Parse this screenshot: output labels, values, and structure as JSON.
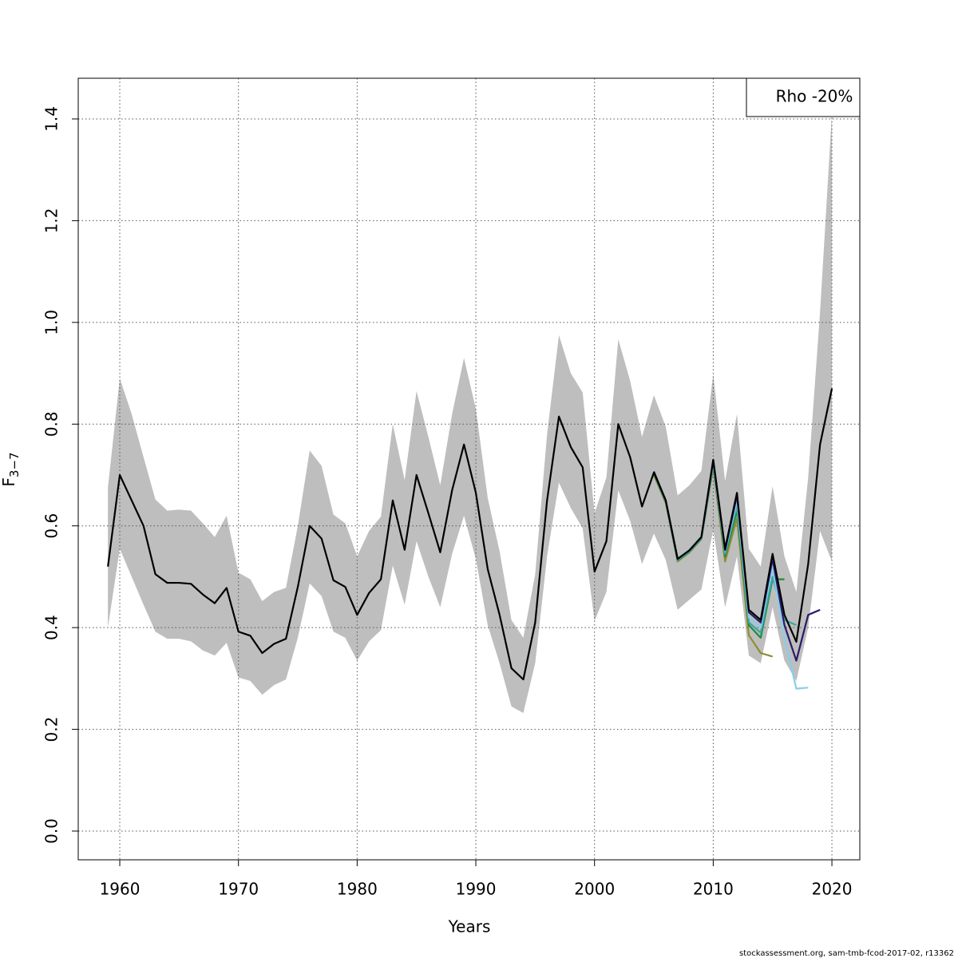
{
  "chart_data": {
    "type": "line",
    "xlabel": "Years",
    "ylabel": "F",
    "ylabel_sub": "3−7",
    "footer": "stockassessment.org, sam-tmb-fcod-2017-02, r13362",
    "legend": {
      "text": "Rho -20%",
      "position": "top-right"
    },
    "xlim": [
      1956.5,
      2022.35
    ],
    "ylim": [
      -0.0565,
      1.48
    ],
    "xticks": [
      1960,
      1970,
      1980,
      1990,
      2000,
      2010,
      2020
    ],
    "yticks": [
      {
        "value": 0,
        "label": "0.0"
      },
      0.2,
      0.4,
      0.6,
      0.8,
      {
        "value": 1,
        "label": "1.0"
      },
      1.2,
      1.4
    ],
    "grid": true,
    "x": [
      1959,
      1960,
      1961,
      1962,
      1963,
      1964,
      1965,
      1966,
      1967,
      1968,
      1969,
      1970,
      1971,
      1972,
      1973,
      1974,
      1975,
      1976,
      1977,
      1978,
      1979,
      1980,
      1981,
      1982,
      1983,
      1984,
      1985,
      1986,
      1987,
      1988,
      1989,
      1990,
      1991,
      1992,
      1993,
      1994,
      1995,
      1996,
      1997,
      1998,
      1999,
      2000,
      2001,
      2002,
      2003,
      2004,
      2005,
      2006,
      2007,
      2008,
      2009,
      2010,
      2011,
      2012,
      2013,
      2014,
      2015,
      2016,
      2017,
      2018,
      2019,
      2020
    ],
    "band": {
      "color": "#bebebe",
      "upper": [
        0.675,
        0.89,
        0.82,
        0.735,
        0.652,
        0.63,
        0.632,
        0.63,
        0.605,
        0.578,
        0.62,
        0.508,
        0.495,
        0.452,
        0.47,
        0.478,
        0.6,
        0.748,
        0.718,
        0.622,
        0.605,
        0.54,
        0.59,
        0.618,
        0.8,
        0.69,
        0.865,
        0.775,
        0.68,
        0.82,
        0.93,
        0.83,
        0.655,
        0.55,
        0.415,
        0.38,
        0.505,
        0.78,
        0.975,
        0.9,
        0.862,
        0.625,
        0.695,
        0.967,
        0.885,
        0.775,
        0.857,
        0.795,
        0.66,
        0.68,
        0.708,
        0.898,
        0.688,
        0.82,
        0.555,
        0.52,
        0.678,
        0.54,
        0.47,
        0.695,
        1.02,
        1.41
      ],
      "lower": [
        0.4,
        0.555,
        0.5,
        0.445,
        0.392,
        0.378,
        0.378,
        0.373,
        0.355,
        0.345,
        0.37,
        0.302,
        0.295,
        0.268,
        0.287,
        0.298,
        0.38,
        0.487,
        0.462,
        0.392,
        0.38,
        0.335,
        0.373,
        0.395,
        0.522,
        0.445,
        0.57,
        0.5,
        0.44,
        0.545,
        0.62,
        0.535,
        0.405,
        0.33,
        0.245,
        0.232,
        0.33,
        0.54,
        0.685,
        0.635,
        0.595,
        0.413,
        0.47,
        0.67,
        0.61,
        0.525,
        0.585,
        0.533,
        0.435,
        0.455,
        0.475,
        0.592,
        0.44,
        0.54,
        0.345,
        0.33,
        0.44,
        0.335,
        0.295,
        0.4,
        0.59,
        0.53
      ]
    },
    "series": [
      {
        "color": "#8e8e2e",
        "x": [
          2005,
          2006,
          2007,
          2008,
          2009,
          2010,
          2011,
          2012,
          2013,
          2014,
          2015
        ],
        "values": [
          0.7,
          0.645,
          0.53,
          0.548,
          0.574,
          0.715,
          0.53,
          0.615,
          0.385,
          0.35,
          0.343
        ]
      },
      {
        "color": "#1e8c3a",
        "x": [
          2005,
          2006,
          2007,
          2008,
          2009,
          2010,
          2011,
          2012,
          2013,
          2014,
          2015,
          2016
        ],
        "values": [
          0.703,
          0.647,
          0.532,
          0.549,
          0.575,
          0.72,
          0.54,
          0.63,
          0.405,
          0.38,
          0.495,
          0.495
        ]
      },
      {
        "color": "#3aa6a6",
        "x": [
          2005,
          2006,
          2007,
          2008,
          2009,
          2010,
          2011,
          2012,
          2013,
          2014,
          2015,
          2016,
          2017
        ],
        "values": [
          0.705,
          0.648,
          0.533,
          0.55,
          0.576,
          0.722,
          0.545,
          0.64,
          0.41,
          0.39,
          0.5,
          0.415,
          0.405
        ]
      },
      {
        "color": "#87ceeb",
        "x": [
          2005,
          2006,
          2007,
          2008,
          2009,
          2010,
          2011,
          2012,
          2013,
          2014,
          2015,
          2016,
          2017,
          2018
        ],
        "values": [
          0.707,
          0.65,
          0.535,
          0.552,
          0.578,
          0.725,
          0.55,
          0.65,
          0.42,
          0.4,
          0.52,
          0.38,
          0.28,
          0.282
        ]
      },
      {
        "color": "#2b1a6b",
        "x": [
          2005,
          2006,
          2007,
          2008,
          2009,
          2010,
          2011,
          2012,
          2013,
          2014,
          2015,
          2016,
          2017,
          2018,
          2019
        ],
        "values": [
          0.707,
          0.65,
          0.535,
          0.552,
          0.578,
          0.728,
          0.552,
          0.66,
          0.43,
          0.41,
          0.535,
          0.405,
          0.335,
          0.425,
          0.435
        ]
      },
      {
        "color": "#000000",
        "values": [
          0.52,
          0.7,
          0.65,
          0.6,
          0.505,
          0.488,
          0.488,
          0.486,
          0.465,
          0.448,
          0.478,
          0.392,
          0.384,
          0.35,
          0.368,
          0.378,
          0.48,
          0.6,
          0.575,
          0.493,
          0.48,
          0.425,
          0.468,
          0.495,
          0.65,
          0.553,
          0.7,
          0.625,
          0.548,
          0.67,
          0.76,
          0.665,
          0.515,
          0.425,
          0.32,
          0.298,
          0.41,
          0.65,
          0.815,
          0.755,
          0.715,
          0.51,
          0.57,
          0.8,
          0.735,
          0.638,
          0.705,
          0.65,
          0.535,
          0.552,
          0.578,
          0.73,
          0.555,
          0.665,
          0.435,
          0.415,
          0.545,
          0.425,
          0.372,
          0.525,
          0.76,
          0.87
        ]
      }
    ]
  }
}
